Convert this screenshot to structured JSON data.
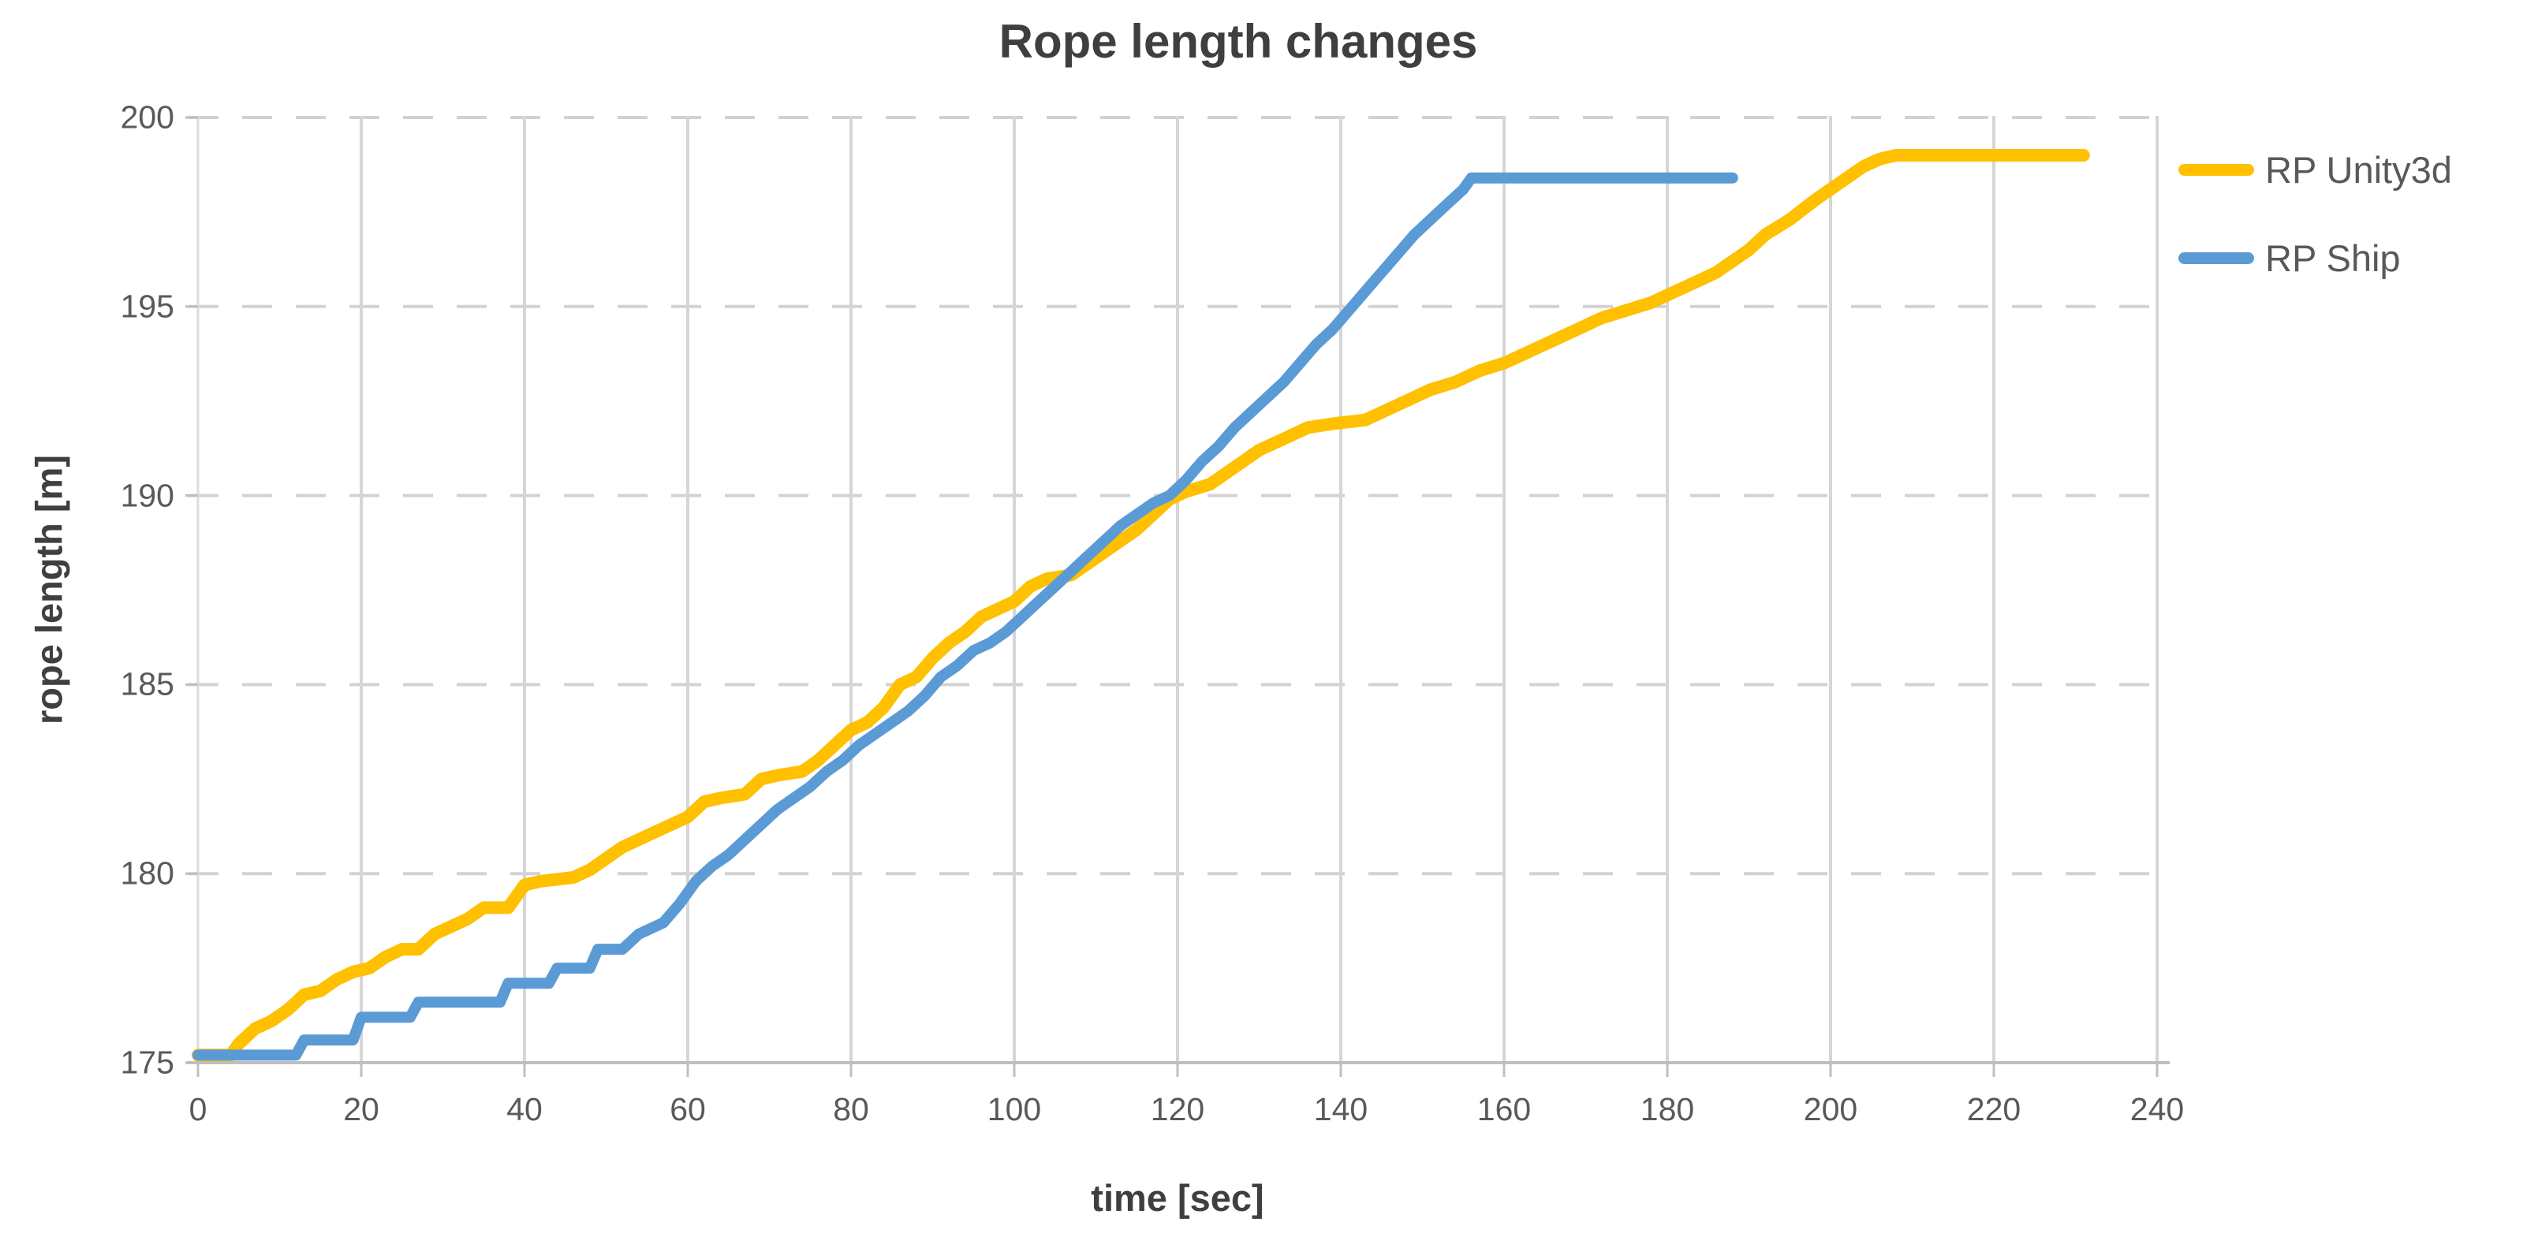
{
  "chart_data": {
    "type": "line",
    "title": "Rope length changes",
    "xlabel": "time [sec]",
    "ylabel": "rope length [m]",
    "xlim": [
      0,
      240
    ],
    "ylim": [
      175,
      200
    ],
    "x_ticks": [
      0,
      20,
      40,
      60,
      80,
      100,
      120,
      140,
      160,
      180,
      200,
      220,
      240
    ],
    "y_ticks": [
      175,
      180,
      185,
      190,
      195,
      200
    ],
    "grid": {
      "horizontal": "dashed",
      "vertical": "solid",
      "gridline_color": "#d6d6d6",
      "axis_color": "#bfbfbf"
    },
    "legend_position": "right",
    "series": [
      {
        "name": "RP Unity3d",
        "color": "#FFC000",
        "points": [
          [
            0,
            175.2
          ],
          [
            4,
            175.2
          ],
          [
            5,
            175.5
          ],
          [
            7,
            175.9
          ],
          [
            9,
            176.1
          ],
          [
            11,
            176.4
          ],
          [
            13,
            176.8
          ],
          [
            15,
            176.9
          ],
          [
            17,
            177.2
          ],
          [
            19,
            177.4
          ],
          [
            21,
            177.5
          ],
          [
            23,
            177.8
          ],
          [
            25,
            178.0
          ],
          [
            27,
            178.0
          ],
          [
            29,
            178.4
          ],
          [
            31,
            178.6
          ],
          [
            33,
            178.8
          ],
          [
            35,
            179.1
          ],
          [
            38,
            179.1
          ],
          [
            40,
            179.7
          ],
          [
            42,
            179.8
          ],
          [
            46,
            179.9
          ],
          [
            48,
            180.1
          ],
          [
            50,
            180.4
          ],
          [
            52,
            180.7
          ],
          [
            54,
            180.9
          ],
          [
            56,
            181.1
          ],
          [
            58,
            181.3
          ],
          [
            60,
            181.5
          ],
          [
            62,
            181.9
          ],
          [
            64,
            182.0
          ],
          [
            67,
            182.1
          ],
          [
            69,
            182.5
          ],
          [
            71,
            182.6
          ],
          [
            74,
            182.7
          ],
          [
            76,
            183.0
          ],
          [
            78,
            183.4
          ],
          [
            80,
            183.8
          ],
          [
            82,
            184.0
          ],
          [
            84,
            184.4
          ],
          [
            86,
            185.0
          ],
          [
            88,
            185.2
          ],
          [
            90,
            185.7
          ],
          [
            92,
            186.1
          ],
          [
            94,
            186.4
          ],
          [
            96,
            186.8
          ],
          [
            98,
            187.0
          ],
          [
            100,
            187.2
          ],
          [
            102,
            187.6
          ],
          [
            104,
            187.8
          ],
          [
            107,
            187.9
          ],
          [
            109,
            188.2
          ],
          [
            111,
            188.5
          ],
          [
            113,
            188.8
          ],
          [
            115,
            189.1
          ],
          [
            117,
            189.5
          ],
          [
            119,
            189.9
          ],
          [
            121,
            190.1
          ],
          [
            124,
            190.3
          ],
          [
            126,
            190.6
          ],
          [
            128,
            190.9
          ],
          [
            130,
            191.2
          ],
          [
            132,
            191.4
          ],
          [
            134,
            191.6
          ],
          [
            136,
            191.8
          ],
          [
            139,
            191.9
          ],
          [
            143,
            192.0
          ],
          [
            145,
            192.2
          ],
          [
            148,
            192.5
          ],
          [
            151,
            192.8
          ],
          [
            154,
            193.0
          ],
          [
            157,
            193.3
          ],
          [
            160,
            193.5
          ],
          [
            163,
            193.8
          ],
          [
            166,
            194.1
          ],
          [
            169,
            194.4
          ],
          [
            172,
            194.7
          ],
          [
            175,
            194.9
          ],
          [
            178,
            195.1
          ],
          [
            181,
            195.4
          ],
          [
            184,
            195.7
          ],
          [
            186,
            195.9
          ],
          [
            188,
            196.2
          ],
          [
            190,
            196.5
          ],
          [
            192,
            196.9
          ],
          [
            195,
            197.3
          ],
          [
            198,
            197.8
          ],
          [
            200,
            198.1
          ],
          [
            202,
            198.4
          ],
          [
            204,
            198.7
          ],
          [
            206,
            198.9
          ],
          [
            208,
            199.0
          ],
          [
            231,
            199.0
          ]
        ]
      },
      {
        "name": "RP Ship",
        "color": "#5B9BD5",
        "points": [
          [
            0,
            175.2
          ],
          [
            12,
            175.2
          ],
          [
            13,
            175.6
          ],
          [
            19,
            175.6
          ],
          [
            20,
            176.2
          ],
          [
            26,
            176.2
          ],
          [
            27,
            176.6
          ],
          [
            37,
            176.6
          ],
          [
            38,
            177.1
          ],
          [
            43,
            177.1
          ],
          [
            44,
            177.5
          ],
          [
            48,
            177.5
          ],
          [
            49,
            178.0
          ],
          [
            52,
            178.0
          ],
          [
            54,
            178.4
          ],
          [
            57,
            178.7
          ],
          [
            59,
            179.2
          ],
          [
            61,
            179.8
          ],
          [
            63,
            180.2
          ],
          [
            65,
            180.5
          ],
          [
            67,
            180.9
          ],
          [
            69,
            181.3
          ],
          [
            71,
            181.7
          ],
          [
            73,
            182.0
          ],
          [
            75,
            182.3
          ],
          [
            77,
            182.7
          ],
          [
            79,
            183.0
          ],
          [
            81,
            183.4
          ],
          [
            83,
            183.7
          ],
          [
            85,
            184.0
          ],
          [
            87,
            184.3
          ],
          [
            89,
            184.7
          ],
          [
            91,
            185.2
          ],
          [
            93,
            185.5
          ],
          [
            95,
            185.9
          ],
          [
            97,
            186.1
          ],
          [
            99,
            186.4
          ],
          [
            101,
            186.8
          ],
          [
            103,
            187.2
          ],
          [
            105,
            187.6
          ],
          [
            107,
            188.0
          ],
          [
            109,
            188.4
          ],
          [
            111,
            188.8
          ],
          [
            113,
            189.2
          ],
          [
            115,
            189.5
          ],
          [
            117,
            189.8
          ],
          [
            119,
            190.0
          ],
          [
            121,
            190.4
          ],
          [
            123,
            190.9
          ],
          [
            125,
            191.3
          ],
          [
            127,
            191.8
          ],
          [
            129,
            192.2
          ],
          [
            131,
            192.6
          ],
          [
            133,
            193.0
          ],
          [
            135,
            193.5
          ],
          [
            137,
            194.0
          ],
          [
            139,
            194.4
          ],
          [
            141,
            194.9
          ],
          [
            143,
            195.4
          ],
          [
            145,
            195.9
          ],
          [
            147,
            196.4
          ],
          [
            149,
            196.9
          ],
          [
            151,
            197.3
          ],
          [
            153,
            197.7
          ],
          [
            155,
            198.1
          ],
          [
            156,
            198.4
          ],
          [
            188,
            198.4
          ]
        ]
      }
    ]
  },
  "text_colors": {
    "title": "#3f3f3f",
    "ticks": "#595959",
    "legend": "#595959"
  }
}
